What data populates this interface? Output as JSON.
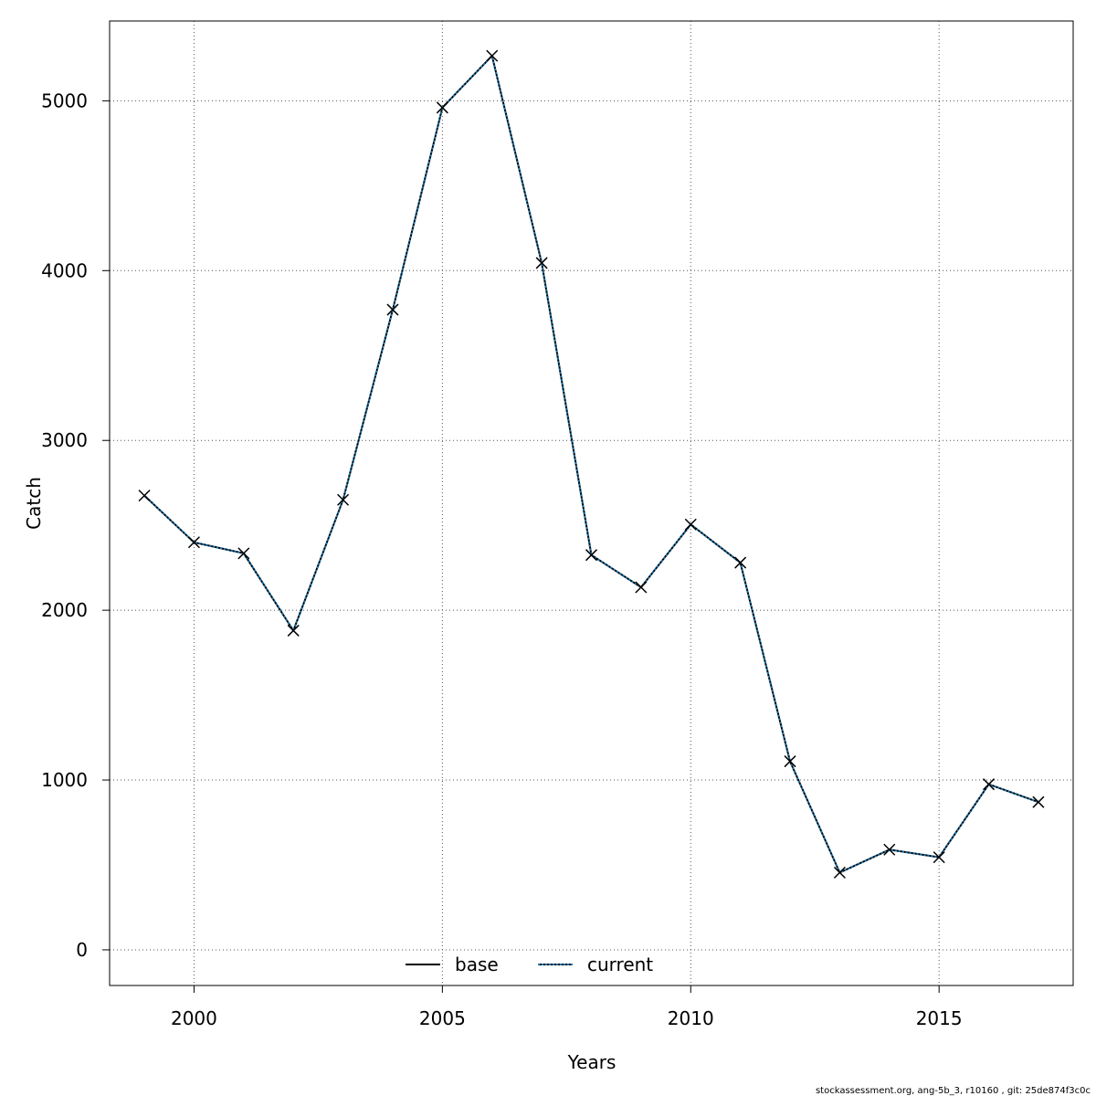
{
  "chart_data": {
    "type": "line",
    "xlabel": "Years",
    "ylabel": "Catch",
    "xlim": [
      1998.3,
      2017.7
    ],
    "ylim": [
      -210,
      5470
    ],
    "x_ticks": [
      2000,
      2005,
      2010,
      2015
    ],
    "y_ticks": [
      0,
      1000,
      2000,
      3000,
      4000,
      5000
    ],
    "grid": true,
    "legend_position": "bottom-center",
    "x": [
      1999,
      2000,
      2001,
      2002,
      2003,
      2004,
      2005,
      2006,
      2007,
      2008,
      2009,
      2010,
      2011,
      2012,
      2013,
      2014,
      2015,
      2016,
      2017
    ],
    "series": [
      {
        "name": "base",
        "color": "#000000",
        "line_style": "solid",
        "marker": "x",
        "values": [
          2675,
          2400,
          2335,
          1880,
          2650,
          3770,
          4960,
          5265,
          4045,
          2325,
          2135,
          2505,
          2280,
          1110,
          455,
          590,
          545,
          975,
          870
        ]
      },
      {
        "name": "current",
        "color": "#1a7ab8",
        "line_style": "dotted",
        "marker": "none",
        "values": [
          2675,
          2400,
          2335,
          1880,
          2650,
          3770,
          4960,
          5265,
          4045,
          2325,
          2135,
          2505,
          2280,
          1110,
          455,
          590,
          545,
          975,
          870
        ]
      }
    ],
    "footer": "stockassessment.org, ang-5b_3, r10160 , git: 25de874f3c0c"
  }
}
